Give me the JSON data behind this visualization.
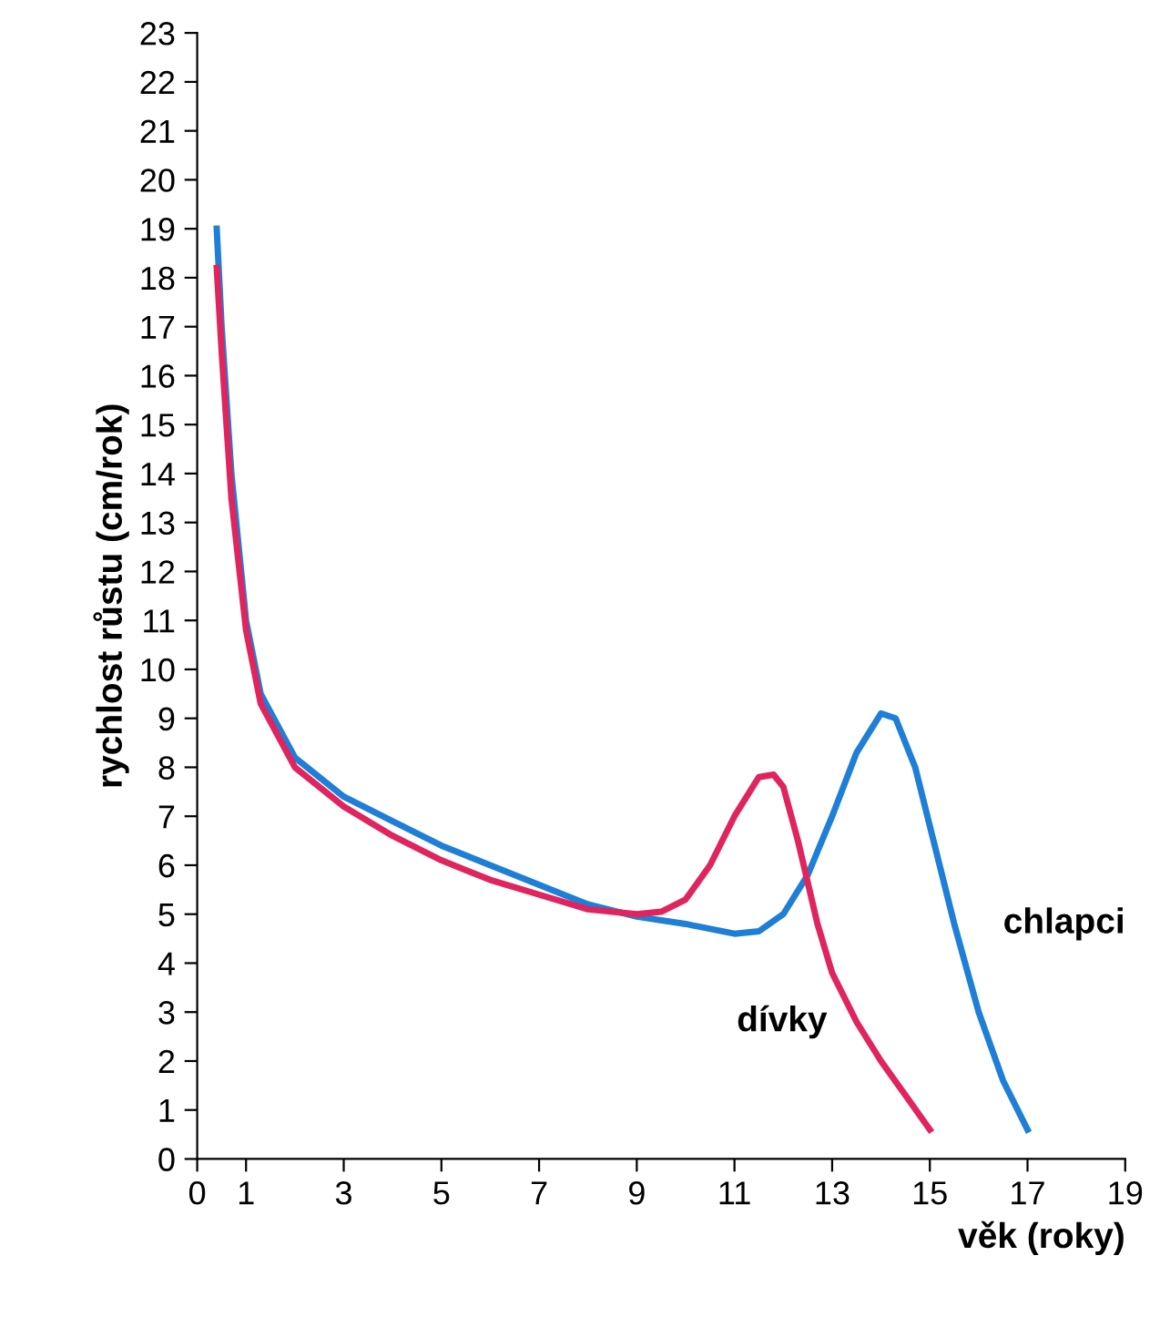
{
  "chart_data": {
    "type": "line",
    "xlabel": "věk (roky)",
    "ylabel": "rychlost růstu (cm/rok)",
    "xlim": [
      0,
      19
    ],
    "ylim": [
      0,
      23
    ],
    "xticks": [
      0,
      1,
      3,
      5,
      7,
      9,
      11,
      13,
      15,
      17,
      19
    ],
    "yticks": [
      0,
      1,
      2,
      3,
      4,
      5,
      6,
      7,
      8,
      9,
      10,
      11,
      12,
      13,
      14,
      15,
      16,
      17,
      18,
      19,
      20,
      21,
      22,
      23
    ],
    "grid": false,
    "legend": false,
    "marker": "none",
    "line_style": "solid",
    "series": [
      {
        "name": "chlapci",
        "color": "#1f7fd6",
        "x": [
          0.4,
          0.5,
          0.7,
          1,
          1.3,
          2,
          3,
          4,
          5,
          6,
          7,
          8,
          9,
          10,
          11,
          11.5,
          12,
          12.5,
          13,
          13.5,
          14,
          14.3,
          14.7,
          15,
          15.5,
          16,
          16.5,
          17
        ],
        "values": [
          19,
          17,
          14,
          11,
          9.5,
          8.2,
          7.4,
          6.9,
          6.4,
          6,
          5.6,
          5.2,
          4.95,
          4.8,
          4.6,
          4.65,
          5,
          5.8,
          7,
          8.3,
          9.1,
          9,
          8,
          6.8,
          4.8,
          3,
          1.6,
          0.6
        ]
      },
      {
        "name": "dívky",
        "color": "#e0245e",
        "x": [
          0.4,
          0.5,
          0.7,
          1,
          1.3,
          2,
          3,
          4,
          5,
          6,
          7,
          8,
          9,
          9.5,
          10,
          10.5,
          11,
          11.5,
          11.8,
          12,
          12.3,
          12.7,
          13,
          13.5,
          14,
          14.5,
          15
        ],
        "values": [
          18.2,
          16.5,
          13.5,
          10.8,
          9.3,
          8,
          7.2,
          6.6,
          6.1,
          5.7,
          5.4,
          5.1,
          5,
          5.05,
          5.3,
          6,
          7,
          7.8,
          7.85,
          7.6,
          6.5,
          4.8,
          3.8,
          2.8,
          2,
          1.3,
          0.6
        ]
      }
    ]
  }
}
